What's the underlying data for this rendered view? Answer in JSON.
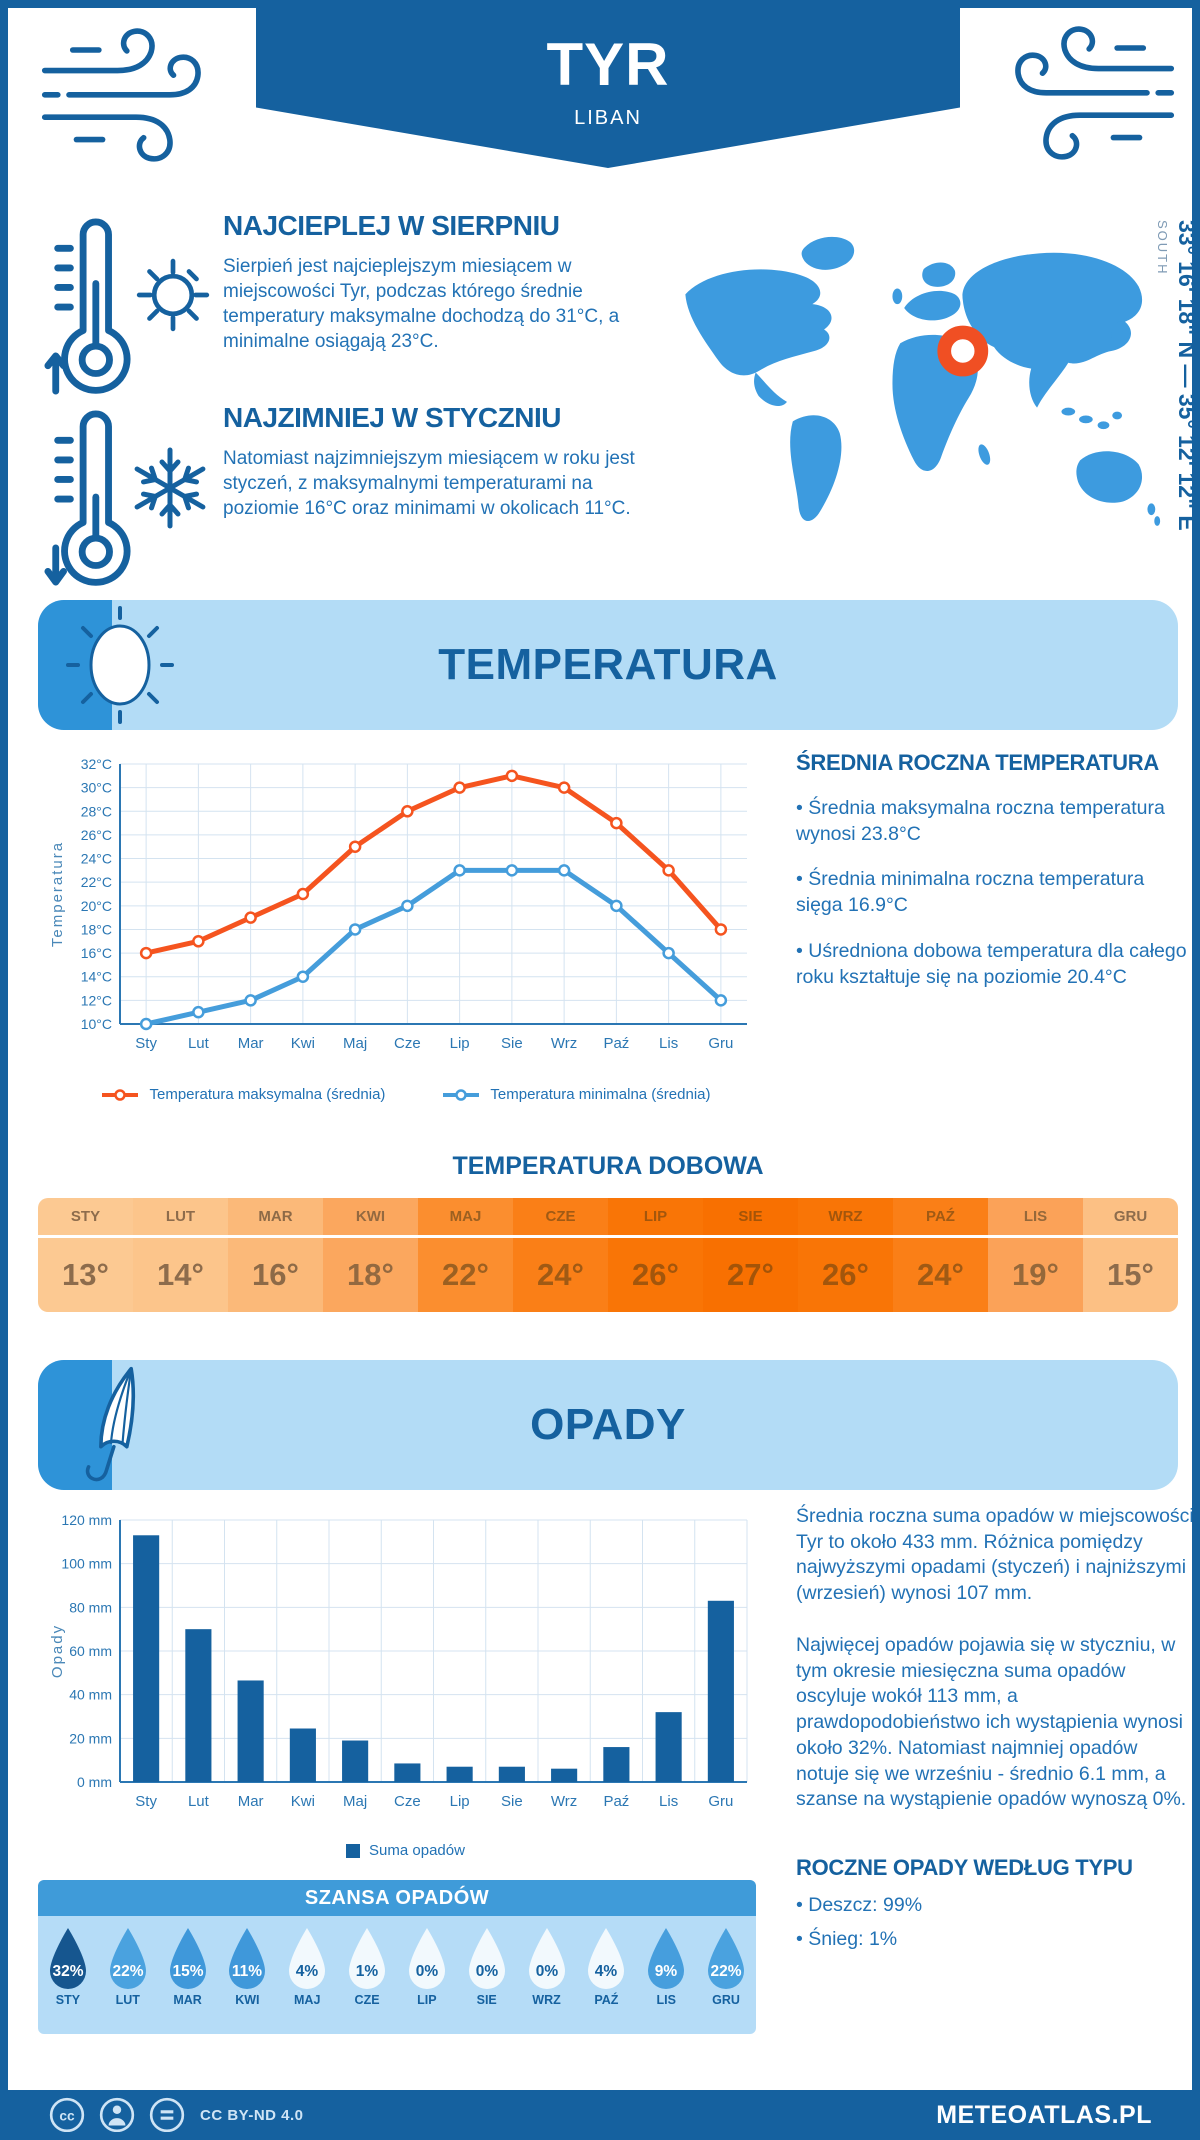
{
  "header": {
    "title": "TYR",
    "subtitle": "LIBAN"
  },
  "colors": {
    "primary_dark_blue": "#15619f",
    "body_text_blue": "#2272b5",
    "banner_light_blue": "#b3dcf6",
    "banner_accent_blue": "#2e93d8",
    "map_blue": "#3d9bdf",
    "marker_orange": "#f04f23",
    "max_line_orange": "#f5541f",
    "min_line_blue": "#459ddb"
  },
  "highlights": [
    {
      "heading": "NAJCIEPLEJ W SIERPNIU",
      "text": "Sierpień jest najcieplejszym miesiącem w miejscowości Tyr, podczas którego średnie temperatury maksymalne dochodzą do 31°C, a minimalne osiągają 23°C."
    },
    {
      "heading": "NAJZIMNIEJ W STYCZNIU",
      "text": "Natomiast najzimniejszym miesiącem w roku jest styczeń, z maksymalnymi temperaturami na poziomie 16°C oraz minimami w okolicach 11°C."
    }
  ],
  "map": {
    "coordinates": "33° 16' 18\" N — 35° 12' 12\" E",
    "direction_label": "SOUTH"
  },
  "temperature": {
    "banner_title": "TEMPERATURA",
    "annual": {
      "heading": "ŚREDNIA ROCZNA TEMPERATURA",
      "bullets": [
        "• Średnia maksymalna roczna temperatura wynosi 23.8°C",
        "• Średnia minimalna roczna temperatura sięga 16.9°C",
        "• Uśredniona dobowa temperatura dla całego roku kształtuje się na poziomie 20.4°C"
      ]
    },
    "daily": {
      "heading": "TEMPERATURA DOBOWA",
      "months": [
        "STY",
        "LUT",
        "MAR",
        "KWI",
        "MAJ",
        "CZE",
        "LIP",
        "SIE",
        "WRZ",
        "PAŹ",
        "LIS",
        "GRU"
      ],
      "values": [
        "13°",
        "14°",
        "16°",
        "18°",
        "22°",
        "24°",
        "26°",
        "27°",
        "26°",
        "24°",
        "19°",
        "15°"
      ],
      "cell_colors": [
        "#fcc992",
        "#fcc58b",
        "#fbb979",
        "#fba75e",
        "#fb8e2f",
        "#fa7f17",
        "#f97506",
        "#f87001",
        "#f97506",
        "#fa7f17",
        "#fba258",
        "#fcc084"
      ],
      "text_colors": [
        "#8d6c4c",
        "#8d6c4c",
        "#8d6a47",
        "#936940",
        "#9c6021",
        "#a05a14",
        "#a3560c",
        "#a45408",
        "#a3560c",
        "#a05a14",
        "#95683a",
        "#8d6c4c"
      ]
    }
  },
  "precipitation": {
    "banner_title": "OPADY",
    "paragraphs": [
      "Średnia roczna suma opadów w miejscowości Tyr to około 433 mm. Różnica pomiędzy najwyższymi opadami (styczeń) i najniższymi (wrzesień) wynosi 107 mm.",
      "Najwięcej opadów pojawia się w styczniu, w tym okresie miesięczna suma opadów oscyluje wokół 113 mm, a prawdopodobieństwo ich wystąpienia wynosi około 32%. Natomiast najmniej opadów notuje się we wrześniu - średnio 6.1 mm, a szanse na wystąpienie opadów wynoszą 0%."
    ],
    "types": {
      "heading": "ROCZNE OPADY WEDŁUG TYPU",
      "bullets": [
        "• Deszcz: 99%",
        "• Śnieg: 1%"
      ]
    },
    "chance": {
      "title": "SZANSA OPADÓW",
      "months": [
        "STY",
        "LUT",
        "MAR",
        "KWI",
        "MAJ",
        "CZE",
        "LIP",
        "SIE",
        "WRZ",
        "PAŹ",
        "LIS",
        "GRU"
      ],
      "values": [
        "32%",
        "22%",
        "15%",
        "11%",
        "4%",
        "1%",
        "0%",
        "0%",
        "0%",
        "4%",
        "9%",
        "22%"
      ],
      "drop_colors": [
        "#16568f",
        "#4aa2df",
        "#3f98da",
        "#3f98da",
        "#f2f9fd",
        "#f2f9fd",
        "#f2f9fd",
        "#f2f9fd",
        "#f2f9fd",
        "#f2f9fd",
        "#469edd",
        "#4aa2df"
      ],
      "value_colors": [
        "#ffffff",
        "#ffffff",
        "#ffffff",
        "#ffffff",
        "#15619f",
        "#15619f",
        "#15619f",
        "#15619f",
        "#15619f",
        "#15619f",
        "#ffffff",
        "#ffffff"
      ]
    }
  },
  "chart_data": [
    {
      "type": "line",
      "categories": [
        "Sty",
        "Lut",
        "Mar",
        "Kwi",
        "Maj",
        "Cze",
        "Lip",
        "Sie",
        "Wrz",
        "Paź",
        "Lis",
        "Gru"
      ],
      "series": [
        {
          "name": "Temperatura maksymalna (średnia)",
          "color": "#f5541f",
          "values": [
            16,
            17,
            19,
            21,
            25,
            28,
            30,
            31,
            30,
            27,
            23,
            18
          ]
        },
        {
          "name": "Temperatura minimalna (średnia)",
          "color": "#459ddb",
          "values": [
            10,
            11,
            12,
            14,
            18,
            20,
            23,
            23,
            23,
            20,
            16,
            12
          ]
        }
      ],
      "ylabel": "Temperatura",
      "ylim": [
        10,
        32
      ],
      "ytick_step": 2,
      "ytick_suffix": "°C",
      "grid": true,
      "legend_position": "bottom"
    },
    {
      "type": "bar",
      "categories": [
        "Sty",
        "Lut",
        "Mar",
        "Kwi",
        "Maj",
        "Cze",
        "Lip",
        "Sie",
        "Wrz",
        "Paź",
        "Lis",
        "Gru"
      ],
      "series": [
        {
          "name": "Suma opadów",
          "color": "#15619f",
          "values": [
            113,
            70,
            46.5,
            24.5,
            19,
            8.5,
            7,
            7,
            6.1,
            16,
            32,
            83
          ]
        }
      ],
      "ylabel": "Opady",
      "ylim": [
        0,
        120
      ],
      "ytick_step": 20,
      "ytick_suffix": " mm",
      "grid": true,
      "legend_position": "bottom"
    }
  ],
  "footer": {
    "license": "CC BY-ND 4.0",
    "brand": "METEOATLAS.PL"
  }
}
